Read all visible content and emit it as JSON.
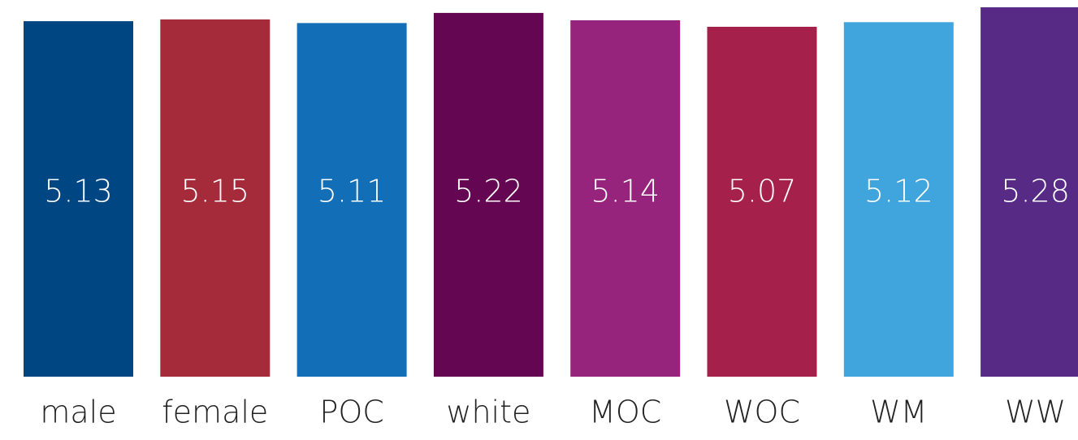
{
  "chart_data": {
    "type": "bar",
    "categories": [
      "male",
      "female",
      "POC",
      "white",
      "MOC",
      "WOC",
      "WM",
      "WW"
    ],
    "values": [
      5.13,
      5.15,
      5.11,
      5.22,
      5.14,
      5.07,
      5.12,
      5.28
    ],
    "value_labels": [
      "5.13",
      "5.15",
      "5.11",
      "5.22",
      "5.14",
      "5.07",
      "5.12",
      "5.28"
    ],
    "colors": [
      "#004683",
      "#a52a3a",
      "#126fb7",
      "#650652",
      "#96247c",
      "#a5204b",
      "#41a5dd",
      "#572b85"
    ],
    "title": "",
    "xlabel": "",
    "ylabel": "",
    "ylim": [
      0,
      5.28
    ],
    "grid": false,
    "legend": "none"
  }
}
